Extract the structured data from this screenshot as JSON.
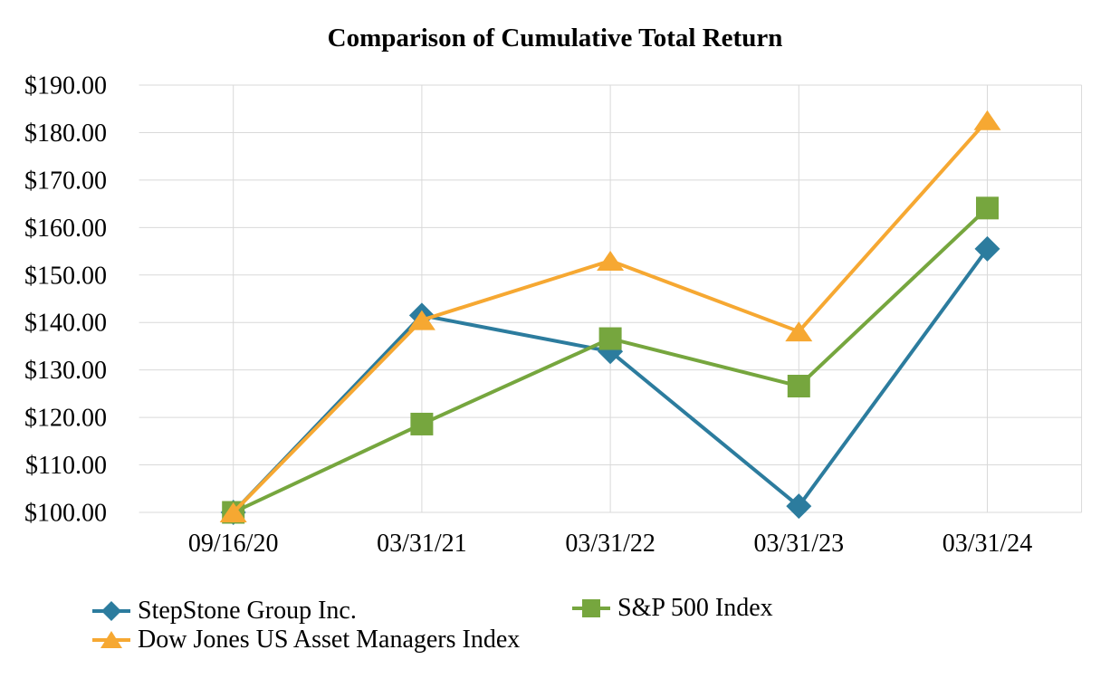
{
  "chart": {
    "title": "Comparison of Cumulative Total Return"
  },
  "chart_data": {
    "type": "line",
    "title": "Comparison of Cumulative Total Return",
    "categories": [
      "09/16/20",
      "03/31/21",
      "03/31/22",
      "03/31/23",
      "03/31/24"
    ],
    "series": [
      {
        "name": "StepStone Group Inc.",
        "marker": "diamond",
        "color": "#2C7C9E",
        "values": [
          100.0,
          141.5,
          133.9,
          101.3,
          155.5
        ]
      },
      {
        "name": "S&P 500 Index",
        "marker": "square",
        "color": "#76A63E",
        "values": [
          100.0,
          118.6,
          136.6,
          126.6,
          164.1
        ]
      },
      {
        "name": "Dow Jones US Asset Managers Index",
        "marker": "triangle",
        "color": "#F6A832",
        "values": [
          100.0,
          140.5,
          153.0,
          138.1,
          182.6
        ]
      }
    ],
    "ylim": [
      100,
      190
    ],
    "y_tick_step": 10,
    "y_tick_labels": [
      "$100.00",
      "$110.00",
      "$120.00",
      "$130.00",
      "$140.00",
      "$150.00",
      "$160.00",
      "$170.00",
      "$180.00",
      "$190.00"
    ],
    "xlabel": "",
    "ylabel": "",
    "grid": true,
    "gridline_color": "#D9D9D9",
    "text_color": "#000000",
    "legend_position": "bottom"
  },
  "legend": {
    "items": [
      {
        "label": "StepStone Group Inc.",
        "marker": "diamond",
        "color": "#2C7C9E"
      },
      {
        "label": "S&P 500 Index",
        "marker": "square",
        "color": "#76A63E"
      },
      {
        "label": "Dow Jones US Asset Managers Index",
        "marker": "triangle",
        "color": "#F6A832"
      }
    ]
  }
}
